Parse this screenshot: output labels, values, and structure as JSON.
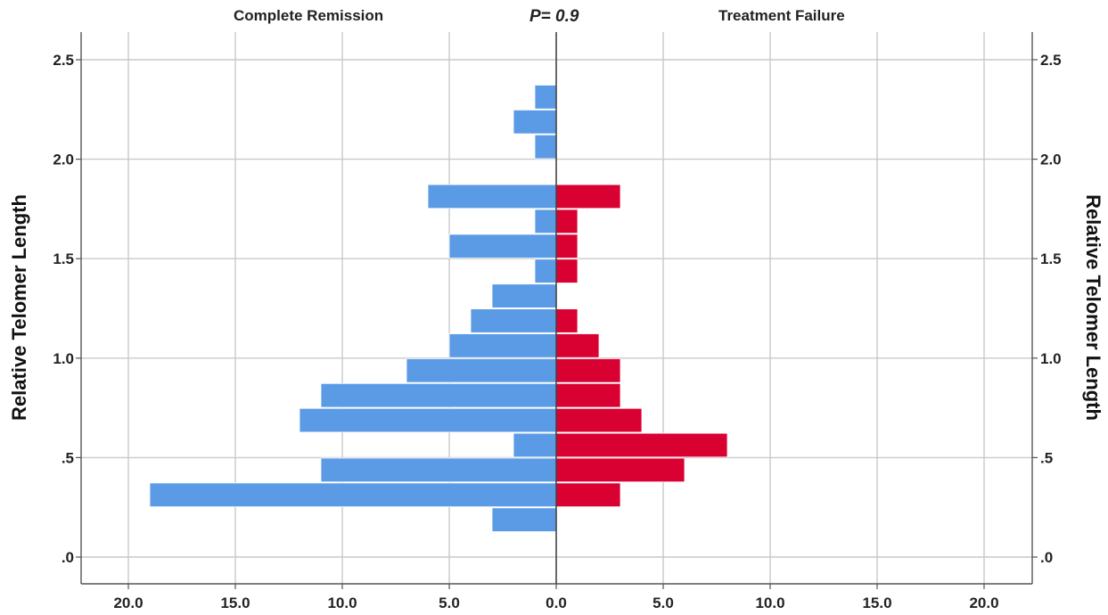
{
  "chart_data": {
    "type": "bar",
    "orientation": "horizontal",
    "layout": "population-pyramid",
    "annotation": "P= 0.9",
    "ylabel": "Relative Telomer Length",
    "ylim": [
      -0.12,
      2.62
    ],
    "yticks": [
      0,
      0.5,
      1.0,
      1.5,
      2.0,
      2.5
    ],
    "ytick_labels": [
      ".0",
      ".5",
      "1.0",
      "1.5",
      "2.0",
      "2.5"
    ],
    "xlim": [
      0,
      20.9
    ],
    "xticks": [
      0,
      5,
      10,
      15,
      20
    ],
    "xtick_labels": [
      "0.0",
      "5.0",
      "10.0",
      "15.0",
      "20.0"
    ],
    "grid": true,
    "bin_width": 0.125,
    "bin_centers": [
      0.1875,
      0.3125,
      0.4375,
      0.5625,
      0.6875,
      0.8125,
      0.9375,
      1.0625,
      1.1875,
      1.3125,
      1.4375,
      1.5625,
      1.6875,
      1.8125,
      1.9375,
      2.0625,
      2.1875,
      2.3125
    ],
    "series": [
      {
        "name": "Complete Remission",
        "side": "left",
        "color": "#5B9BE6",
        "values": [
          3,
          19,
          11,
          2,
          12,
          11,
          7,
          5,
          4,
          3,
          1,
          5,
          1,
          6,
          0,
          1,
          2,
          1
        ]
      },
      {
        "name": "Treatment Failure",
        "side": "right",
        "color": "#D90032",
        "values": [
          0,
          3,
          6,
          8,
          4,
          3,
          3,
          2,
          1,
          0,
          1,
          1,
          1,
          3,
          0,
          0,
          0,
          0
        ]
      }
    ]
  }
}
